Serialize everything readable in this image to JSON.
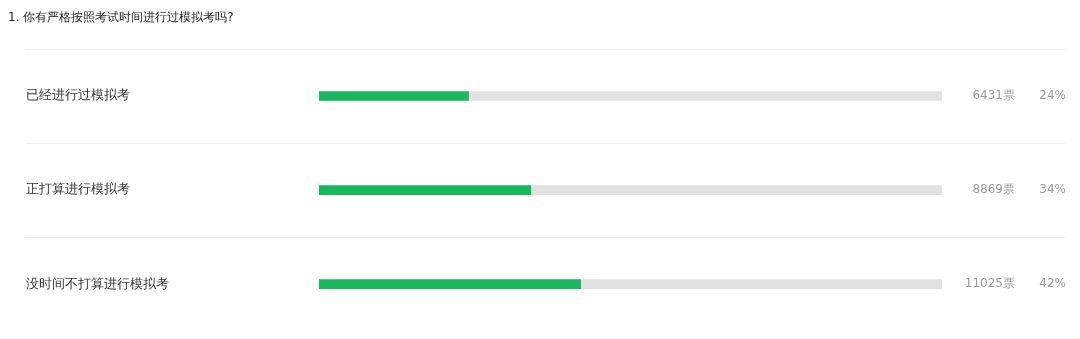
{
  "chart_data": {
    "type": "bar",
    "orientation": "horizontal",
    "stacked": true,
    "title": "1. 你有严格按照考试时间进行过模拟考吗?",
    "categories": [
      "已经进行过模拟考",
      "正打算进行模拟考",
      "没时间不打算进行模拟考"
    ],
    "series": [
      {
        "color": "#17b85c",
        "values": [
          24,
          34,
          42
        ],
        "value_labels": [
          "24%",
          "34%",
          "42%"
        ]
      },
      {
        "color": "#e1e1e1",
        "values": [
          76,
          66,
          58
        ]
      }
    ],
    "xlim": [
      0,
      100
    ],
    "tick_labels": "y",
    "grid": "y",
    "legend": false,
    "annotations": [
      "6431票",
      "8869票",
      "11025票"
    ]
  }
}
